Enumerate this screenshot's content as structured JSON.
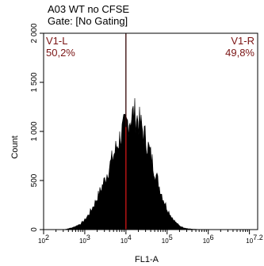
{
  "chart_data": {
    "type": "histogram",
    "title": "A03 WT no CFSE",
    "subtitle": "Gate: [No Gating]",
    "xlabel": "FL1-A",
    "ylabel": "Count",
    "x_scale": "log",
    "xlim": [
      100,
      15848932
    ],
    "ylim": [
      0,
      2000
    ],
    "x_tick_labels": [
      "10^2",
      "10^3",
      "10^4",
      "10^5",
      "10^6",
      "10^7.2"
    ],
    "y_tick_labels": [
      "0",
      "500",
      "1 000",
      "1 500",
      "2 000"
    ],
    "y_ticks": [
      0,
      500,
      1000,
      1500,
      2000
    ],
    "gate_x": 10000,
    "gates": [
      {
        "name": "V1-L",
        "percent": "50,2%"
      },
      {
        "name": "V1-R",
        "percent": "49,8%"
      }
    ],
    "profile": {
      "log10_x": [
        2.0,
        2.5,
        2.7,
        2.9,
        3.0,
        3.1,
        3.2,
        3.3,
        3.4,
        3.5,
        3.6,
        3.7,
        3.8,
        3.9,
        4.0,
        4.1,
        4.2,
        4.3,
        4.4,
        4.5,
        4.6,
        4.7,
        4.8,
        4.9,
        5.0,
        5.1,
        5.2,
        5.3,
        5.4,
        5.5,
        5.6,
        5.8,
        6.0
      ],
      "count": [
        0,
        0,
        20,
        60,
        100,
        160,
        240,
        330,
        430,
        540,
        660,
        780,
        900,
        1020,
        1100,
        1170,
        1220,
        1150,
        1050,
        930,
        780,
        620,
        470,
        330,
        220,
        140,
        80,
        40,
        20,
        10,
        5,
        0,
        0
      ]
    }
  }
}
